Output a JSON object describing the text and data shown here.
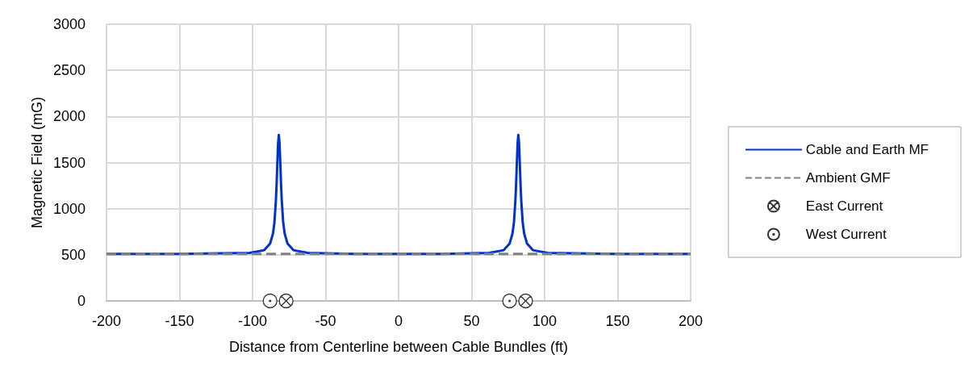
{
  "chart_data": {
    "type": "line",
    "xlabel": "Distance from Centerline between Cable Bundles (ft)",
    "ylabel": "Magnetic Field (mG)",
    "xlim": [
      -200,
      200
    ],
    "xticks": [
      -200,
      -150,
      -100,
      -50,
      0,
      50,
      100,
      150,
      200
    ],
    "ylim": [
      0,
      3000
    ],
    "yticks": [
      0,
      500,
      {
        "value": 1000,
        "label": "1000"
      },
      {
        "value": 1500,
        "label": "1500"
      },
      {
        "value": 2000,
        "label": "2000"
      },
      {
        "value": 2500,
        "label": "2500"
      },
      {
        "value": 3000,
        "label": "3000"
      }
    ],
    "grid": true,
    "legend": "right",
    "series": [
      {
        "name": "Cable and Earth MF",
        "color": "#0033cc",
        "line_style": "solid",
        "marker": "none",
        "x": [
          -200,
          -150,
          -102,
          -92,
          -88,
          -86,
          -85,
          -84,
          -83.5,
          -83,
          -82.5,
          -82,
          -81.5,
          -81,
          -80.5,
          -80,
          -79,
          -78,
          -76,
          -72,
          -62,
          -30,
          0,
          30,
          62,
          72,
          76,
          78,
          79,
          80,
          80.5,
          81,
          81.5,
          82,
          82.5,
          83,
          83.5,
          84,
          85,
          86,
          88,
          92,
          102,
          150,
          200
        ],
        "values": [
          510,
          510,
          520,
          550,
          620,
          730,
          850,
          1090,
          1270,
          1500,
          1710,
          1800,
          1710,
          1500,
          1270,
          1090,
          850,
          730,
          620,
          550,
          520,
          510,
          510,
          510,
          520,
          550,
          620,
          730,
          850,
          1090,
          1270,
          1500,
          1710,
          1800,
          1710,
          1500,
          1270,
          1090,
          850,
          730,
          620,
          550,
          520,
          510,
          510
        ]
      },
      {
        "name": "Ambient GMF",
        "color": "#808080",
        "line_style": "dashed",
        "marker": "none",
        "x": [
          -200,
          200
        ],
        "values": [
          510,
          510
        ]
      },
      {
        "name": "East Current",
        "type": "scatter",
        "color": "#000000",
        "marker": "cross",
        "x": [
          -77,
          87
        ],
        "values": [
          0,
          0
        ]
      },
      {
        "name": "West Current",
        "type": "scatter",
        "color": "#000000",
        "marker": "circle",
        "x": [
          -88,
          76
        ],
        "values": [
          0,
          0
        ]
      }
    ]
  }
}
